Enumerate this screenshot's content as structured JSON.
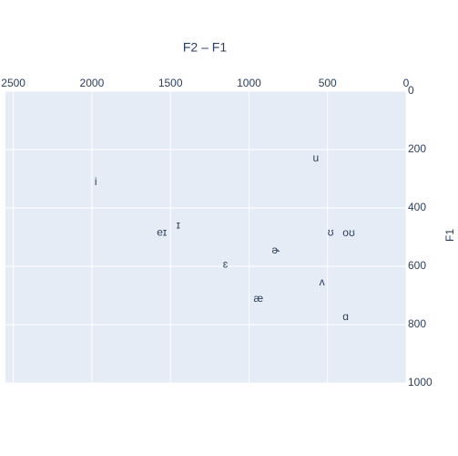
{
  "chart_data": {
    "type": "scatter",
    "title": "F2 – F1",
    "ylabel": "F1",
    "text": [
      "u",
      "i",
      "ɪ",
      "eɪ",
      "ʊ",
      "oʊ",
      "ɚ",
      "ɛ",
      "ʌ",
      "æ",
      "ɑ"
    ],
    "x": [
      575,
      1975,
      1450,
      1555,
      480,
      365,
      830,
      1150,
      535,
      940,
      385
    ],
    "y": [
      230,
      312,
      460,
      485,
      485,
      487,
      547,
      594,
      656,
      712,
      775
    ],
    "color": "#2a3f5f",
    "xlim": [
      2550,
      0
    ],
    "xticks": [
      2500,
      2000,
      1500,
      1000,
      500,
      0
    ],
    "ylim": [
      0,
      1000
    ],
    "yticks": [
      0,
      200,
      400,
      600,
      800,
      1000
    ],
    "grid": true,
    "background": "#e5ecf6"
  }
}
